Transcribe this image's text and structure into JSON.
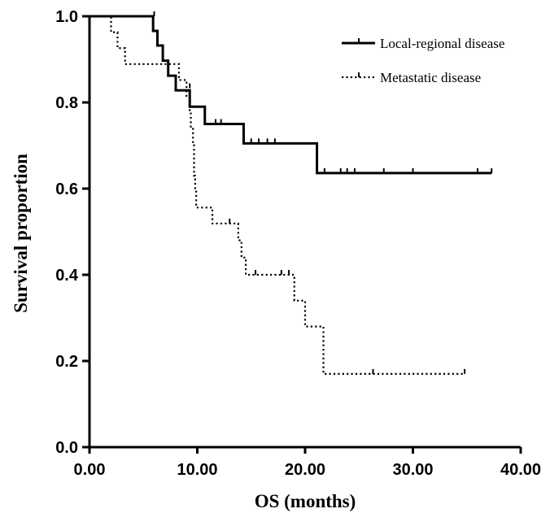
{
  "chart_data": {
    "type": "line",
    "title": "",
    "xlabel": "OS (months)",
    "ylabel": "Survival proportion",
    "xlim": [
      0,
      40
    ],
    "ylim": [
      0,
      1.0
    ],
    "x_ticks": [
      0,
      10,
      20,
      30,
      40
    ],
    "x_tick_labels": [
      "0.00",
      "10.00",
      "20.00",
      "30.00",
      "40.00"
    ],
    "y_ticks": [
      0,
      0.2,
      0.4,
      0.6,
      0.8,
      1.0
    ],
    "y_tick_labels": [
      "0.0",
      "0.2",
      "0.4",
      "0.6",
      "0.8",
      "1.0"
    ],
    "grid": false,
    "legend_position": "top-right",
    "series": [
      {
        "name": "Local-regional disease",
        "style": "solid",
        "color": "#000000",
        "steps": [
          [
            0,
            1.0
          ],
          [
            5.9,
            0.966
          ],
          [
            6.3,
            0.932
          ],
          [
            6.8,
            0.897
          ],
          [
            7.3,
            0.862
          ],
          [
            8.0,
            0.828
          ],
          [
            9.3,
            0.79
          ],
          [
            10.7,
            0.75
          ],
          [
            14.3,
            0.705
          ],
          [
            21.1,
            0.636
          ],
          [
            37.3,
            0.636
          ]
        ],
        "censored": [
          [
            6.0,
            1.0
          ],
          [
            11.7,
            0.75
          ],
          [
            12.2,
            0.75
          ],
          [
            15.0,
            0.705
          ],
          [
            15.7,
            0.705
          ],
          [
            16.5,
            0.705
          ],
          [
            17.2,
            0.705
          ],
          [
            21.8,
            0.636
          ],
          [
            23.3,
            0.636
          ],
          [
            23.9,
            0.636
          ],
          [
            24.6,
            0.636
          ],
          [
            27.3,
            0.636
          ],
          [
            30.0,
            0.636
          ],
          [
            36.0,
            0.636
          ],
          [
            37.3,
            0.636
          ]
        ]
      },
      {
        "name": "Metastatic disease",
        "style": "dotted",
        "color": "#000000",
        "steps": [
          [
            0,
            1.0
          ],
          [
            2.0,
            0.963
          ],
          [
            2.6,
            0.926
          ],
          [
            3.3,
            0.889
          ],
          [
            8.3,
            0.852
          ],
          [
            9.0,
            0.815
          ],
          [
            9.3,
            0.778
          ],
          [
            9.4,
            0.741
          ],
          [
            9.6,
            0.704
          ],
          [
            9.7,
            0.63
          ],
          [
            9.8,
            0.593
          ],
          [
            9.9,
            0.556
          ],
          [
            11.4,
            0.519
          ],
          [
            13.8,
            0.48
          ],
          [
            14.1,
            0.44
          ],
          [
            14.5,
            0.4
          ],
          [
            19.0,
            0.34
          ],
          [
            20.0,
            0.28
          ],
          [
            21.7,
            0.17
          ],
          [
            34.8,
            0.17
          ]
        ],
        "censored": [
          [
            9.3,
            0.833
          ],
          [
            13.0,
            0.519
          ],
          [
            15.4,
            0.4
          ],
          [
            17.8,
            0.4
          ],
          [
            18.5,
            0.4
          ],
          [
            26.3,
            0.17
          ],
          [
            34.8,
            0.17
          ]
        ]
      }
    ]
  }
}
